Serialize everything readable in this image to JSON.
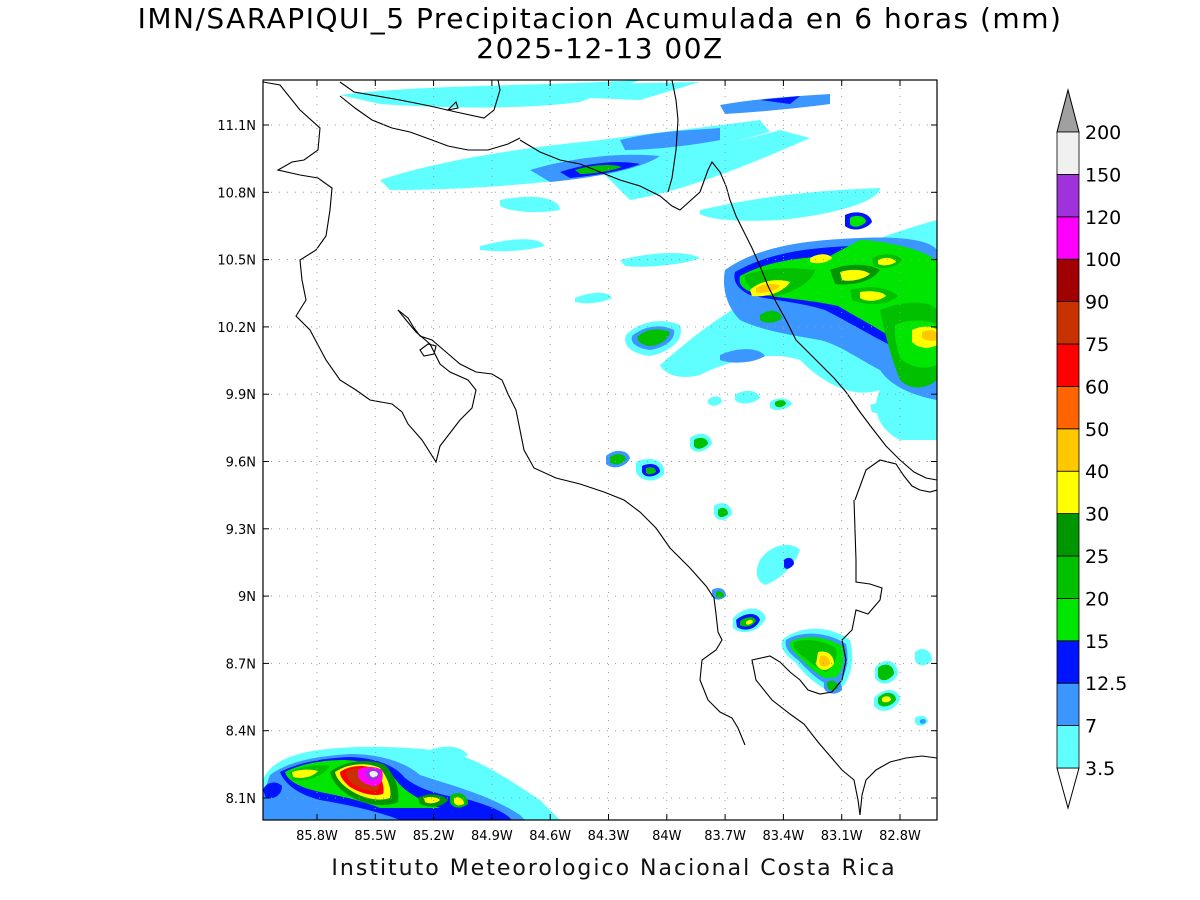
{
  "title": {
    "line1": "IMN/SARAPIQUI_5 Precipitacion Acumulada en 6 horas (mm)",
    "line2": "2025-12-13 00Z"
  },
  "credit": "Instituto Meteorologico Nacional Costa Rica",
  "axes": {
    "lon_labels": [
      "85.8W",
      "85.5W",
      "85.2W",
      "84.9W",
      "84.6W",
      "84.3W",
      "84W",
      "83.7W",
      "83.4W",
      "83.1W",
      "82.8W"
    ],
    "lat_labels": [
      "11.1N",
      "10.8N",
      "10.5N",
      "10.2N",
      "9.9N",
      "9.6N",
      "9.3N",
      "9N",
      "8.7N",
      "8.4N",
      "8.1N"
    ],
    "lon_values": [
      -85.8,
      -85.5,
      -85.2,
      -84.9,
      -84.6,
      -84.3,
      -84.0,
      -83.7,
      -83.4,
      -83.1,
      -82.8
    ],
    "lat_values": [
      11.1,
      10.8,
      10.5,
      10.2,
      9.9,
      9.6,
      9.3,
      9.0,
      8.7,
      8.4,
      8.1
    ],
    "grid": true
  },
  "colorbar": {
    "labels": [
      "3.5",
      "7",
      "12.5",
      "15",
      "20",
      "25",
      "30",
      "40",
      "50",
      "60",
      "75",
      "90",
      "100",
      "120",
      "150",
      "200"
    ],
    "colors": [
      "#ffffff",
      "#60ffff",
      "#3c96ff",
      "#0014ff",
      "#00e600",
      "#00c000",
      "#009600",
      "#ffff00",
      "#ffc800",
      "#ff6400",
      "#ff0000",
      "#c83200",
      "#a00000",
      "#ff00ff",
      "#a032dc",
      "#f0f0f0"
    ],
    "arrow_top_color": "#a0a0a0"
  },
  "precip_cells": [
    {
      "lon": -83.9,
      "lat": 11.22,
      "levels": [
        3.5,
        7
      ]
    },
    {
      "lon": -84.15,
      "lat": 10.93,
      "levels": [
        3.5,
        7,
        12.5,
        20
      ]
    },
    {
      "lon": -84.4,
      "lat": 10.9,
      "levels": [
        3.5,
        7,
        12.5
      ]
    },
    {
      "lon": -83.3,
      "lat": 10.45,
      "levels": [
        3.5,
        7,
        12.5,
        20,
        30
      ]
    },
    {
      "lon": -82.9,
      "lat": 10.42,
      "levels": [
        3.5,
        7,
        12.5,
        20,
        30
      ]
    },
    {
      "lon": -83.35,
      "lat": 10.38,
      "levels": [
        3.5,
        7,
        12.5,
        20,
        40
      ]
    },
    {
      "lon": -82.6,
      "lat": 10.18,
      "levels": [
        3.5,
        7,
        12.5,
        20,
        30
      ]
    },
    {
      "lon": -83.95,
      "lat": 10.17,
      "levels": [
        3.5,
        7,
        12.5,
        20
      ]
    },
    {
      "lon": -84.15,
      "lat": 9.61,
      "levels": [
        3.5,
        7,
        12.5,
        20
      ]
    },
    {
      "lon": -84.0,
      "lat": 9.55,
      "levels": [
        3.5,
        7,
        12.5,
        20
      ]
    },
    {
      "lon": -83.67,
      "lat": 9.67,
      "levels": [
        3.5,
        7,
        12.5,
        20
      ]
    },
    {
      "lon": -83.6,
      "lat": 9.36,
      "levels": [
        3.5,
        7,
        12.5,
        20
      ]
    },
    {
      "lon": -83.5,
      "lat": 8.88,
      "levels": [
        3.5,
        7,
        12.5,
        20
      ]
    },
    {
      "lon": -83.1,
      "lat": 8.72,
      "levels": [
        3.5,
        7,
        12.5,
        20,
        30
      ]
    },
    {
      "lon": -82.75,
      "lat": 8.6,
      "levels": [
        3.5,
        7,
        12.5,
        20,
        30
      ]
    },
    {
      "lon": -85.45,
      "lat": 8.2,
      "levels": [
        3.5,
        7,
        12.5,
        20,
        30,
        60,
        90,
        150
      ]
    },
    {
      "lon": -85.85,
      "lat": 8.2,
      "levels": [
        3.5,
        7,
        12.5,
        20,
        30
      ]
    },
    {
      "lon": -84.9,
      "lat": 8.08,
      "levels": [
        3.5,
        7,
        12.5,
        20,
        30
      ]
    }
  ]
}
